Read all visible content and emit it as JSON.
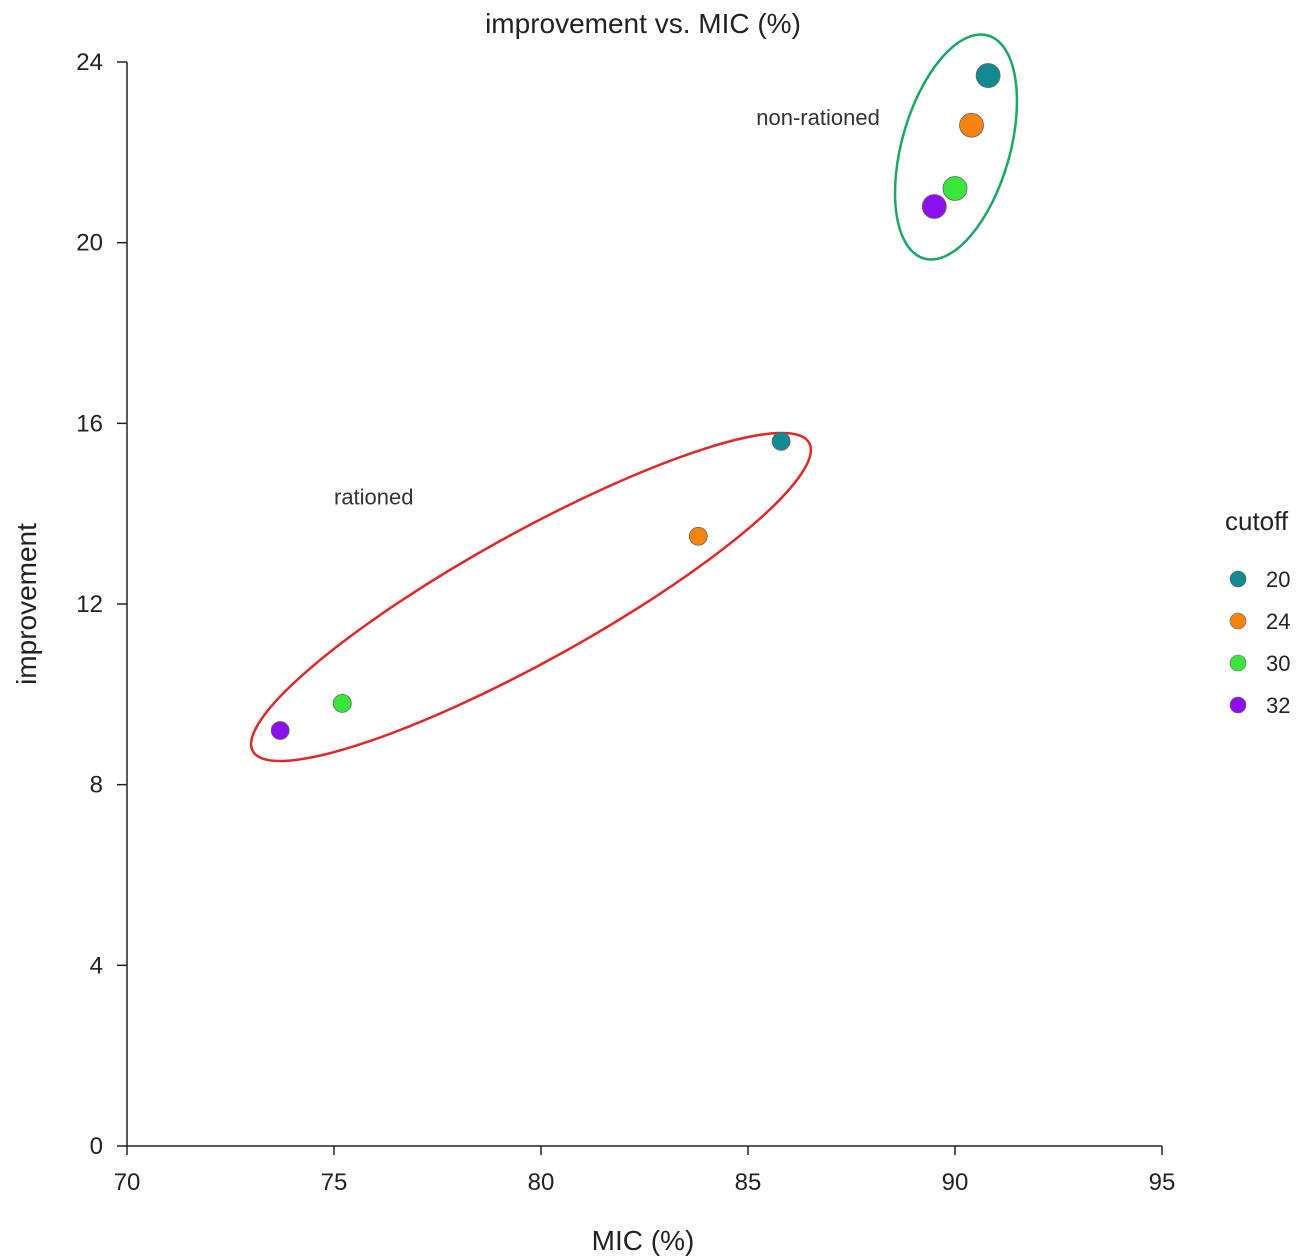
{
  "chart_data": {
    "type": "scatter",
    "title": "improvement vs. MIC (%)",
    "xlabel": "MIC (%)",
    "ylabel": "improvement",
    "xlim": [
      70,
      95
    ],
    "ylim": [
      0,
      24
    ],
    "xticks": [
      "70",
      "75",
      "80",
      "85",
      "90",
      "95"
    ],
    "yticks": [
      "0",
      "4",
      "8",
      "12",
      "16",
      "20",
      "24"
    ],
    "grid": false,
    "legend": {
      "title": "cutoff",
      "placement": "right",
      "entries": [
        {
          "label": "20",
          "color": "#138a8f"
        },
        {
          "label": "24",
          "color": "#f5840f"
        },
        {
          "label": "30",
          "color": "#3be63b"
        },
        {
          "label": "32",
          "color": "#8c0ff0"
        }
      ]
    },
    "series": [
      {
        "name": "20",
        "color": "#138a8f",
        "points": [
          {
            "x": 85.8,
            "y": 15.6
          },
          {
            "x": 90.8,
            "y": 23.7
          }
        ]
      },
      {
        "name": "24",
        "color": "#f5840f",
        "points": [
          {
            "x": 83.8,
            "y": 13.5
          },
          {
            "x": 90.4,
            "y": 22.6
          }
        ]
      },
      {
        "name": "30",
        "color": "#3be63b",
        "points": [
          {
            "x": 75.2,
            "y": 9.8
          },
          {
            "x": 90.0,
            "y": 21.2
          }
        ]
      },
      {
        "name": "32",
        "color": "#8c0ff0",
        "points": [
          {
            "x": 73.7,
            "y": 9.2
          },
          {
            "x": 89.5,
            "y": 20.8
          }
        ]
      }
    ],
    "annotations": [
      {
        "text": "non-rationed",
        "color": "#1aa866",
        "x": 85.2,
        "y": 22.6
      },
      {
        "text": "rationed",
        "color": "#e02828",
        "x": 75.0,
        "y": 14.2
      }
    ]
  }
}
